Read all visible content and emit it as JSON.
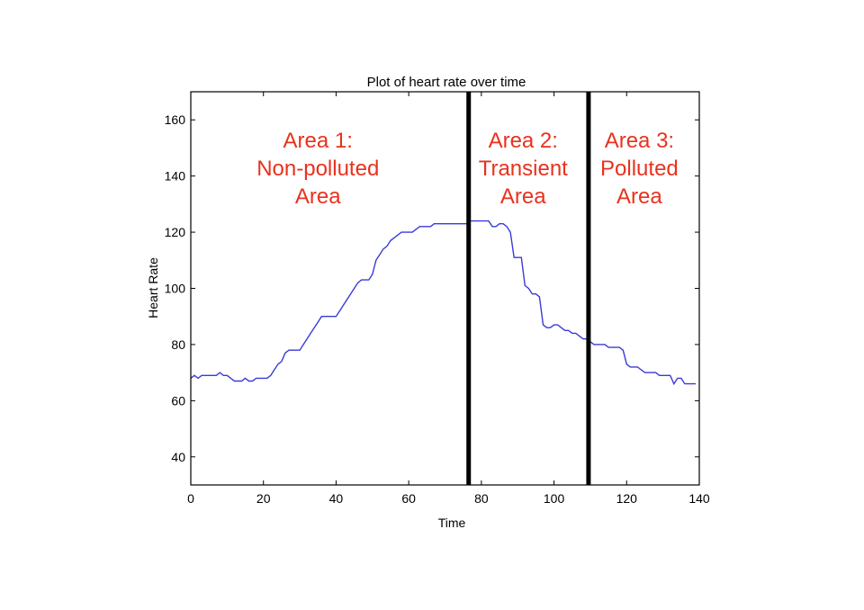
{
  "chart_data": {
    "type": "line",
    "title": "Plot of heart rate over time",
    "xlabel": "Time",
    "ylabel": "Heart Rate",
    "xlim": [
      0,
      140
    ],
    "ylim": [
      30,
      170
    ],
    "xticks": [
      0,
      20,
      40,
      60,
      80,
      100,
      120,
      140
    ],
    "yticks": [
      40,
      60,
      80,
      100,
      120,
      140,
      160
    ],
    "grid": false,
    "line_color": "#3a3ad8",
    "series": [
      {
        "x": [
          0,
          1,
          2,
          3,
          4,
          5,
          6,
          7,
          8,
          9,
          10,
          11,
          12,
          13,
          14,
          15,
          16,
          17,
          18,
          19,
          20,
          21,
          22,
          23,
          24,
          25,
          26,
          27,
          28,
          29,
          30,
          31,
          32,
          33,
          34,
          35,
          36,
          37,
          38,
          39,
          40,
          41,
          42,
          43,
          44,
          45,
          46,
          47,
          48,
          49,
          50,
          51,
          52,
          53,
          54,
          55,
          56,
          57,
          58,
          59,
          60,
          61,
          62,
          63,
          64,
          65,
          66,
          67,
          68,
          69,
          70,
          71,
          72,
          73,
          74,
          75,
          76,
          77,
          78,
          79,
          80,
          81,
          82,
          83,
          84,
          85,
          86,
          87,
          88,
          89,
          90,
          91,
          92,
          93,
          94,
          95,
          96,
          97,
          98,
          99,
          100,
          101,
          102,
          103,
          104,
          105,
          106,
          107,
          108,
          109,
          110,
          111,
          112,
          113,
          114,
          115,
          116,
          117,
          118,
          119,
          120,
          121,
          122,
          123,
          124,
          125,
          126,
          127,
          128,
          129,
          130,
          131,
          132,
          133,
          134,
          135,
          136,
          137,
          138,
          139
        ],
        "y": [
          68,
          69,
          68,
          69,
          69,
          69,
          69,
          69,
          70,
          69,
          69,
          68,
          67,
          67,
          67,
          68,
          67,
          67,
          68,
          68,
          68,
          68,
          69,
          71,
          73,
          74,
          77,
          78,
          78,
          78,
          78,
          80,
          82,
          84,
          86,
          88,
          90,
          90,
          90,
          90,
          90,
          92,
          94,
          96,
          98,
          100,
          102,
          103,
          103,
          103,
          105,
          110,
          112,
          114,
          115,
          117,
          118,
          119,
          120,
          120,
          120,
          120,
          121,
          122,
          122,
          122,
          122,
          123,
          123,
          123,
          123,
          123,
          123,
          123,
          123,
          123,
          123,
          124,
          124,
          124,
          124,
          124,
          124,
          122,
          122,
          123,
          123,
          122,
          120,
          111,
          111,
          111,
          101,
          100,
          98,
          98,
          97,
          87,
          86,
          86,
          87,
          87,
          86,
          85,
          85,
          84,
          84,
          83,
          82,
          82,
          81,
          80,
          80,
          80,
          80,
          79,
          79,
          79,
          79,
          78,
          73,
          72,
          72,
          72,
          71,
          70,
          70,
          70,
          70,
          69,
          69,
          69,
          69,
          66,
          68,
          68,
          66,
          66,
          66,
          66
        ]
      }
    ],
    "dividers": [
      76.5,
      109.5
    ],
    "regions": [
      {
        "lines": [
          "Area 1:",
          "Non-polluted",
          "Area"
        ],
        "x": 35
      },
      {
        "lines": [
          "Area 2:",
          "Transient",
          "Area"
        ],
        "x": 91.5
      },
      {
        "lines": [
          "Area 3:",
          "Polluted",
          "Area"
        ],
        "x": 123.5
      }
    ],
    "region_label_color": "#e8321e"
  }
}
